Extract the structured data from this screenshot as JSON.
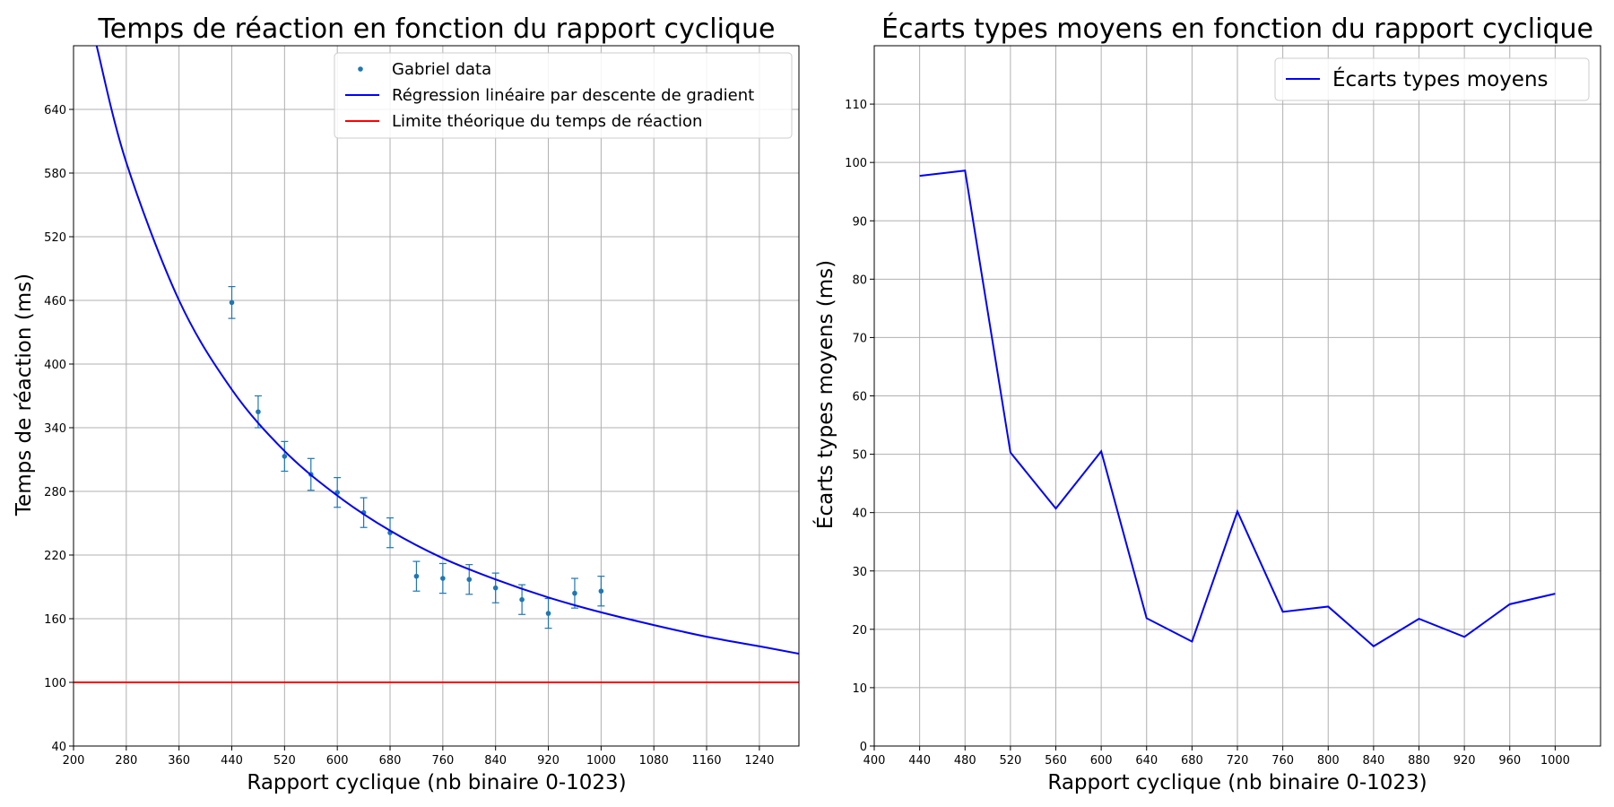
{
  "chart_data": [
    {
      "type": "scatter",
      "title": "Temps de réaction en fonction du rapport cyclique",
      "xlabel": "Rapport cyclique (nb binaire 0-1023)",
      "ylabel": "Temps de réaction (ms)",
      "xlim": [
        200,
        1300
      ],
      "ylim": [
        40,
        700
      ],
      "xticks": [
        200,
        280,
        360,
        440,
        520,
        600,
        680,
        760,
        840,
        920,
        1000,
        1080,
        1160,
        1240
      ],
      "yticks": [
        40,
        100,
        160,
        220,
        280,
        340,
        400,
        460,
        520,
        580,
        640
      ],
      "grid": true,
      "legend_position": "top-right",
      "legend": [
        "Gabriel data",
        "Régression linéaire par descente de gradient",
        "Limite théorique du temps de réaction"
      ],
      "colors": {
        "data": "#1f77b4",
        "regression": "#0000ff",
        "limit": "#ff0000"
      },
      "series": [
        {
          "name": "Gabriel data",
          "kind": "errorbar",
          "x": [
            440,
            480,
            520,
            560,
            600,
            640,
            680,
            720,
            760,
            800,
            840,
            880,
            920,
            960,
            1000
          ],
          "y": [
            458,
            355,
            313,
            296,
            279,
            260,
            241,
            200,
            198,
            197,
            189,
            178,
            165,
            184,
            186
          ],
          "err": [
            15,
            15,
            14,
            15,
            14,
            14,
            14,
            14,
            14,
            14,
            14,
            14,
            14,
            14,
            14
          ]
        },
        {
          "name": "Régression linéaire par descente de gradient",
          "kind": "curve",
          "x": [
            235,
            280,
            360,
            440,
            520,
            600,
            680,
            760,
            840,
            920,
            1000,
            1080,
            1160,
            1240,
            1300
          ],
          "y": [
            700,
            590,
            460,
            376,
            318,
            276,
            243,
            217,
            197,
            180,
            166,
            154,
            143,
            134,
            127
          ]
        },
        {
          "name": "Limite théorique du temps de réaction",
          "kind": "hline",
          "y": 100
        }
      ]
    },
    {
      "type": "line",
      "title": "Écarts types moyens en fonction du rapport cyclique",
      "xlabel": "Rapport cyclique (nb binaire 0-1023)",
      "ylabel": "Écarts types moyens (ms)",
      "xlim": [
        400,
        1040
      ],
      "ylim": [
        0,
        120
      ],
      "xticks": [
        400,
        440,
        480,
        520,
        560,
        600,
        640,
        680,
        720,
        760,
        800,
        840,
        880,
        920,
        960,
        1000
      ],
      "yticks": [
        0,
        10,
        20,
        30,
        40,
        50,
        60,
        70,
        80,
        90,
        100,
        110
      ],
      "grid": true,
      "legend_position": "top-right",
      "legend": [
        "Écarts types moyens"
      ],
      "colors": {
        "line": "#0000ff"
      },
      "series": [
        {
          "name": "Écarts types moyens",
          "x": [
            440,
            480,
            520,
            560,
            600,
            640,
            680,
            720,
            760,
            800,
            840,
            880,
            920,
            960,
            1000
          ],
          "y": [
            97.7,
            98.6,
            50.3,
            40.7,
            50.5,
            21.9,
            17.9,
            40.2,
            23.0,
            23.9,
            17.1,
            21.8,
            18.7,
            24.3,
            26.1
          ]
        }
      ]
    }
  ]
}
